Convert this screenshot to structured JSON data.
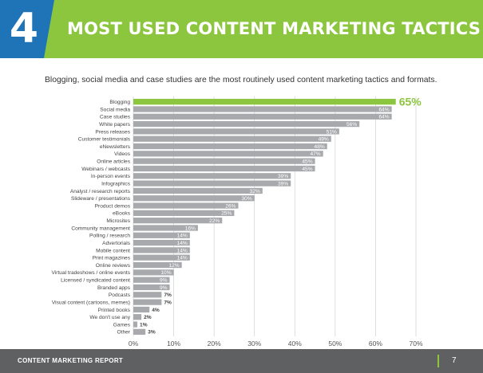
{
  "header": {
    "section_number": "4",
    "title": "MOST USED CONTENT MARKETING TACTICS",
    "colors": {
      "blue": "#1f73b7",
      "green": "#8cc63f"
    }
  },
  "subtitle": "Blogging, social media and case studies are the most routinely used content marketing tactics and formats.",
  "chart_data": {
    "type": "bar",
    "orientation": "horizontal",
    "categories": [
      "Blogging",
      "Social media",
      "Case studies",
      "White papers",
      "Press releases",
      "Customer testimonials",
      "eNewsletters",
      "Videos",
      "Online articles",
      "Webinars / webcasts",
      "In-person events",
      "Infographics",
      "Analyst / research reports",
      "Slideware / presentations",
      "Product demos",
      "eBooks",
      "Microsites",
      "Community management",
      "Polling / research",
      "Advertorials",
      "Mobile content",
      "Print magazines",
      "Online reviews",
      "Virtual tradeshows / online events",
      "Licensed / syndicated content",
      "Branded apps",
      "Podcasts",
      "Visual content (cartoons, memes)",
      "Printed books",
      "We don't use any",
      "Games",
      "Other"
    ],
    "values": [
      65,
      64,
      64,
      56,
      51,
      49,
      48,
      47,
      45,
      45,
      39,
      39,
      32,
      30,
      26,
      25,
      22,
      16,
      14,
      14,
      14,
      14,
      12,
      10,
      9,
      9,
      7,
      7,
      4,
      2,
      1,
      3
    ],
    "labels": [
      "65%",
      "64%",
      "64%",
      "56%",
      "51%",
      "49%",
      "48%",
      "47%",
      "45%",
      "45%",
      "39%",
      "39%",
      "32%",
      "30%",
      "26%",
      "25%",
      "22%",
      "16%",
      "14%",
      "14%",
      "14%",
      "14%",
      "12%",
      "10%",
      "9%",
      "9%",
      "7%",
      "7%",
      "4%",
      "2%",
      "1%",
      "3%"
    ],
    "highlight_index": 0,
    "highlight_color": "#8cc63f",
    "bar_color": "#a7a9ac",
    "xlim": [
      0,
      70
    ],
    "xticks": [
      "0%",
      "10%",
      "20%",
      "30%",
      "40%",
      "50%",
      "60%",
      "70%"
    ],
    "grid": true
  },
  "footer": {
    "report_name": "CONTENT MARKETING REPORT",
    "page_number": "7"
  }
}
